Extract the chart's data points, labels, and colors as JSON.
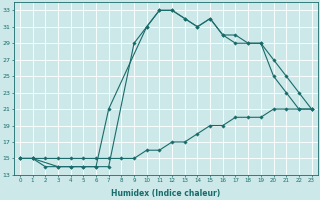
{
  "title": "",
  "xlabel": "Humidex (Indice chaleur)",
  "bg_color": "#cce8e8",
  "line_color": "#1a6b6b",
  "grid_color": "#ffffff",
  "xlim": [
    -0.5,
    23.5
  ],
  "ylim": [
    13,
    34
  ],
  "xticks": [
    0,
    1,
    2,
    3,
    4,
    5,
    6,
    7,
    8,
    9,
    10,
    11,
    12,
    13,
    14,
    15,
    16,
    17,
    18,
    19,
    20,
    21,
    22,
    23
  ],
  "yticks": [
    13,
    15,
    17,
    19,
    21,
    23,
    25,
    27,
    29,
    31,
    33
  ],
  "series": [
    {
      "x": [
        0,
        1,
        2,
        3,
        4,
        5,
        6,
        7,
        10,
        11,
        12,
        13,
        14,
        15,
        16,
        17,
        18,
        19,
        20,
        21,
        22,
        23
      ],
      "y": [
        15,
        15,
        14,
        14,
        14,
        14,
        14,
        21,
        31,
        33,
        33,
        32,
        31,
        32,
        30,
        30,
        29,
        29,
        25,
        23,
        21,
        21
      ]
    },
    {
      "x": [
        0,
        1,
        3,
        4,
        5,
        6,
        7,
        9,
        10,
        11,
        12,
        13,
        14,
        15,
        16,
        17,
        18,
        19,
        20,
        21,
        22,
        23
      ],
      "y": [
        15,
        15,
        14,
        14,
        14,
        14,
        14,
        29,
        31,
        33,
        33,
        32,
        31,
        32,
        30,
        29,
        29,
        29,
        27,
        25,
        23,
        21
      ]
    },
    {
      "x": [
        0,
        1,
        2,
        3,
        4,
        5,
        6,
        7,
        8,
        9,
        10,
        11,
        12,
        13,
        14,
        15,
        16,
        17,
        18,
        19,
        20,
        21,
        22,
        23
      ],
      "y": [
        15,
        15,
        15,
        15,
        15,
        15,
        15,
        15,
        15,
        15,
        16,
        16,
        17,
        17,
        18,
        19,
        19,
        20,
        20,
        20,
        21,
        21,
        21,
        21
      ]
    }
  ],
  "figsize": [
    3.2,
    2.0
  ],
  "dpi": 100
}
